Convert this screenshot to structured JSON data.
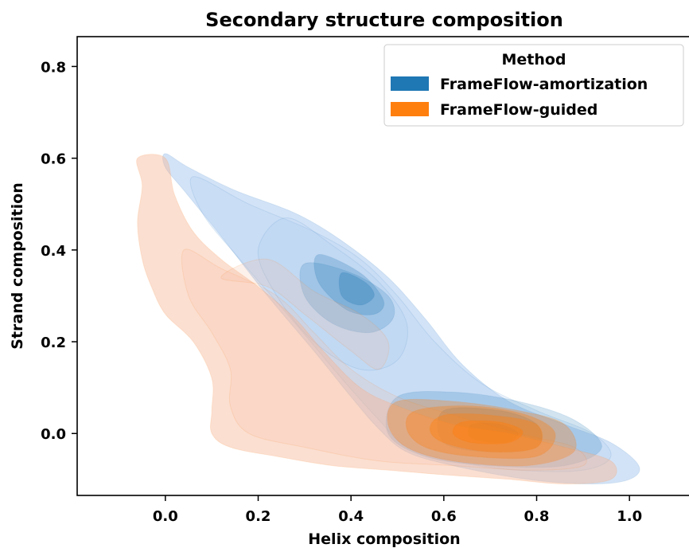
{
  "chart_data": {
    "type": "kde-contour",
    "title": "Secondary structure composition",
    "xlabel": "Helix composition",
    "ylabel": "Strand composition",
    "xlim": [
      -0.19,
      1.13
    ],
    "ylim": [
      -0.135,
      0.865
    ],
    "x_ticks": [
      {
        "value": 0.0,
        "label": "0.0"
      },
      {
        "value": 0.2,
        "label": "0.2"
      },
      {
        "value": 0.4,
        "label": "0.4"
      },
      {
        "value": 0.6,
        "label": "0.6"
      },
      {
        "value": 0.8,
        "label": "0.8"
      },
      {
        "value": 1.0,
        "label": "1.0"
      }
    ],
    "y_ticks": [
      {
        "value": 0.0,
        "label": "0.0"
      },
      {
        "value": 0.2,
        "label": "0.2"
      },
      {
        "value": 0.4,
        "label": "0.4"
      },
      {
        "value": 0.6,
        "label": "0.6"
      },
      {
        "value": 0.8,
        "label": "0.8"
      }
    ],
    "grid": false,
    "legend": {
      "title": "Method",
      "position": "top-right",
      "entries": [
        {
          "label": "FrameFlow-amortization",
          "color": "#1f77b4"
        },
        {
          "label": "FrameFlow-guided",
          "color": "#ff7f0e"
        }
      ]
    },
    "series": [
      {
        "name": "FrameFlow-amortization",
        "color": "#1f77b4",
        "fill_color": "#a8c8f0",
        "levels": [
          {
            "points": [
              [
                0.0,
                0.61
              ],
              [
                0.05,
                0.58
              ],
              [
                0.15,
                0.53
              ],
              [
                0.28,
                0.48
              ],
              [
                0.38,
                0.42
              ],
              [
                0.48,
                0.34
              ],
              [
                0.56,
                0.25
              ],
              [
                0.64,
                0.15
              ],
              [
                0.74,
                0.07
              ],
              [
                0.86,
                0.02
              ],
              [
                0.96,
                -0.02
              ],
              [
                1.02,
                -0.07
              ],
              [
                1.0,
                -0.1
              ],
              [
                0.92,
                -0.11
              ],
              [
                0.78,
                -0.1
              ],
              [
                0.62,
                -0.07
              ],
              [
                0.52,
                -0.04
              ],
              [
                0.46,
                0.01
              ],
              [
                0.4,
                0.08
              ],
              [
                0.32,
                0.18
              ],
              [
                0.22,
                0.3
              ],
              [
                0.12,
                0.43
              ],
              [
                0.04,
                0.53
              ],
              [
                0.0,
                0.58
              ]
            ],
            "opacity": 0.5
          },
          {
            "points": [
              [
                0.06,
                0.56
              ],
              [
                0.18,
                0.5
              ],
              [
                0.32,
                0.44
              ],
              [
                0.42,
                0.38
              ],
              [
                0.5,
                0.3
              ],
              [
                0.58,
                0.2
              ],
              [
                0.68,
                0.11
              ],
              [
                0.8,
                0.05
              ],
              [
                0.92,
                0.0
              ],
              [
                0.96,
                -0.05
              ],
              [
                0.9,
                -0.08
              ],
              [
                0.76,
                -0.08
              ],
              [
                0.62,
                -0.06
              ],
              [
                0.52,
                -0.03
              ],
              [
                0.46,
                0.03
              ],
              [
                0.38,
                0.12
              ],
              [
                0.28,
                0.24
              ],
              [
                0.16,
                0.38
              ],
              [
                0.08,
                0.48
              ]
            ],
            "opacity": 0.22
          },
          {
            "points": [
              [
                0.26,
                0.47
              ],
              [
                0.36,
                0.41
              ],
              [
                0.46,
                0.33
              ],
              [
                0.52,
                0.24
              ],
              [
                0.5,
                0.16
              ],
              [
                0.42,
                0.14
              ],
              [
                0.32,
                0.2
              ],
              [
                0.24,
                0.3
              ],
              [
                0.2,
                0.4
              ]
            ],
            "opacity": 0.18
          },
          {
            "points": [
              [
                0.3,
                0.37
              ],
              [
                0.4,
                0.35
              ],
              [
                0.48,
                0.3
              ],
              [
                0.49,
                0.25
              ],
              [
                0.44,
                0.22
              ],
              [
                0.36,
                0.24
              ],
              [
                0.3,
                0.3
              ]
            ],
            "opacity": 0.2
          },
          {
            "points": [
              [
                0.33,
                0.39
              ],
              [
                0.42,
                0.35
              ],
              [
                0.47,
                0.29
              ],
              [
                0.45,
                0.26
              ],
              [
                0.39,
                0.27
              ],
              [
                0.33,
                0.33
              ]
            ],
            "opacity": 0.25
          },
          {
            "points": [
              [
                0.38,
                0.35
              ],
              [
                0.43,
                0.33
              ],
              [
                0.45,
                0.3
              ],
              [
                0.42,
                0.28
              ],
              [
                0.38,
                0.3
              ]
            ],
            "opacity": 0.3
          },
          {
            "points": [
              [
                0.5,
                0.08
              ],
              [
                0.62,
                0.09
              ],
              [
                0.76,
                0.07
              ],
              [
                0.88,
                0.03
              ],
              [
                0.94,
                -0.03
              ],
              [
                0.86,
                -0.07
              ],
              [
                0.7,
                -0.07
              ],
              [
                0.56,
                -0.05
              ],
              [
                0.48,
                0.0
              ]
            ],
            "opacity": 0.2
          },
          {
            "points": [
              [
                0.6,
                0.05
              ],
              [
                0.72,
                0.05
              ],
              [
                0.8,
                0.02
              ],
              [
                0.8,
                -0.03
              ],
              [
                0.7,
                -0.04
              ],
              [
                0.6,
                -0.02
              ]
            ],
            "opacity": 0.25
          },
          {
            "points": [
              [
                0.66,
                0.02
              ],
              [
                0.72,
                0.02
              ],
              [
                0.76,
                0.0
              ],
              [
                0.73,
                -0.02
              ],
              [
                0.66,
                -0.01
              ]
            ],
            "opacity": 0.3
          }
        ]
      },
      {
        "name": "FrameFlow-guided",
        "color": "#ff7f0e",
        "fill_color": "#f7b89a",
        "levels": [
          {
            "points": [
              [
                -0.06,
                0.6
              ],
              [
                0.0,
                0.6
              ],
              [
                0.02,
                0.52
              ],
              [
                0.06,
                0.44
              ],
              [
                0.12,
                0.38
              ],
              [
                0.2,
                0.32
              ],
              [
                0.28,
                0.25
              ],
              [
                0.34,
                0.18
              ],
              [
                0.42,
                0.1
              ],
              [
                0.5,
                0.06
              ],
              [
                0.62,
                0.02
              ],
              [
                0.74,
                0.0
              ],
              [
                0.86,
                -0.03
              ],
              [
                0.96,
                -0.06
              ],
              [
                0.96,
                -0.1
              ],
              [
                0.86,
                -0.11
              ],
              [
                0.74,
                -0.1
              ],
              [
                0.6,
                -0.09
              ],
              [
                0.48,
                -0.08
              ],
              [
                0.36,
                -0.07
              ],
              [
                0.24,
                -0.05
              ],
              [
                0.14,
                -0.03
              ],
              [
                0.1,
                0.0
              ],
              [
                0.1,
                0.05
              ],
              [
                0.1,
                0.12
              ],
              [
                0.06,
                0.2
              ],
              [
                0.0,
                0.26
              ],
              [
                -0.03,
                0.32
              ],
              [
                -0.05,
                0.38
              ],
              [
                -0.06,
                0.46
              ],
              [
                -0.05,
                0.54
              ]
            ],
            "opacity": 0.45
          },
          {
            "points": [
              [
                0.04,
                0.4
              ],
              [
                0.12,
                0.36
              ],
              [
                0.24,
                0.3
              ],
              [
                0.32,
                0.22
              ],
              [
                0.4,
                0.14
              ],
              [
                0.5,
                0.08
              ],
              [
                0.62,
                0.04
              ],
              [
                0.76,
                0.0
              ],
              [
                0.88,
                -0.03
              ],
              [
                0.9,
                -0.07
              ],
              [
                0.78,
                -0.08
              ],
              [
                0.62,
                -0.07
              ],
              [
                0.46,
                -0.06
              ],
              [
                0.3,
                -0.03
              ],
              [
                0.18,
                0.0
              ],
              [
                0.14,
                0.06
              ],
              [
                0.14,
                0.14
              ],
              [
                0.1,
                0.22
              ],
              [
                0.05,
                0.3
              ]
            ],
            "opacity": 0.18
          },
          {
            "points": [
              [
                0.12,
                0.34
              ],
              [
                0.22,
                0.32
              ],
              [
                0.3,
                0.26
              ],
              [
                0.4,
                0.18
              ],
              [
                0.46,
                0.14
              ],
              [
                0.48,
                0.2
              ],
              [
                0.42,
                0.26
              ],
              [
                0.32,
                0.31
              ],
              [
                0.22,
                0.38
              ]
            ],
            "opacity": 0.2
          },
          {
            "points": [
              [
                0.5,
                0.07
              ],
              [
                0.62,
                0.07
              ],
              [
                0.76,
                0.05
              ],
              [
                0.86,
                0.02
              ],
              [
                0.88,
                -0.04
              ],
              [
                0.78,
                -0.07
              ],
              [
                0.62,
                -0.06
              ],
              [
                0.52,
                -0.03
              ],
              [
                0.48,
                0.02
              ]
            ],
            "opacity": 0.3
          },
          {
            "points": [
              [
                0.54,
                0.05
              ],
              [
                0.66,
                0.06
              ],
              [
                0.78,
                0.04
              ],
              [
                0.84,
                0.0
              ],
              [
                0.8,
                -0.05
              ],
              [
                0.66,
                -0.05
              ],
              [
                0.56,
                -0.03
              ],
              [
                0.52,
                0.01
              ]
            ],
            "opacity": 0.35
          },
          {
            "points": [
              [
                0.6,
                0.04
              ],
              [
                0.7,
                0.04
              ],
              [
                0.8,
                0.02
              ],
              [
                0.8,
                -0.03
              ],
              [
                0.7,
                -0.04
              ],
              [
                0.6,
                -0.02
              ],
              [
                0.57,
                0.01
              ]
            ],
            "opacity": 0.4
          },
          {
            "points": [
              [
                0.64,
                0.025
              ],
              [
                0.72,
                0.025
              ],
              [
                0.77,
                0.005
              ],
              [
                0.74,
                -0.02
              ],
              [
                0.66,
                -0.02
              ],
              [
                0.62,
                0.0
              ]
            ],
            "opacity": 0.45
          }
        ]
      }
    ]
  }
}
